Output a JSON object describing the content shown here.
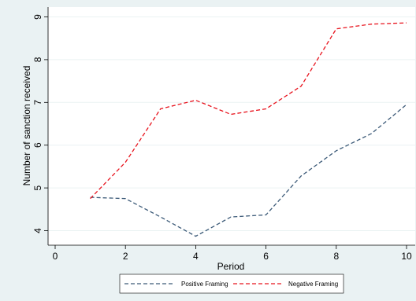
{
  "chart_data": {
    "type": "line",
    "title": "",
    "xlabel": "Period",
    "ylabel": "Number of sanction received",
    "xlim": [
      0,
      10
    ],
    "ylim": [
      3.7,
      9.1
    ],
    "xticks": [
      0,
      2,
      4,
      6,
      8,
      10
    ],
    "yticks": [
      4,
      5,
      6,
      7,
      8,
      9
    ],
    "grid": "horizontal",
    "legend_position": "bottom",
    "x": [
      1,
      2,
      3,
      4,
      5,
      6,
      7,
      8,
      9,
      10
    ],
    "series": [
      {
        "name": "Positive Framing",
        "color": "#3c5a78",
        "dash": "dashed",
        "values": [
          4.78,
          4.75,
          4.32,
          3.87,
          4.32,
          4.37,
          5.28,
          5.87,
          6.27,
          6.95
        ]
      },
      {
        "name": "Negative Framing",
        "color": "#e8141e",
        "dash": "dashed",
        "values": [
          4.75,
          5.6,
          6.85,
          7.05,
          6.72,
          6.85,
          7.38,
          8.72,
          8.83,
          8.86
        ]
      }
    ]
  },
  "colors": {
    "background": "#eaf2f3",
    "plot_background": "#ffffff",
    "grid": "#eaf2f3"
  }
}
